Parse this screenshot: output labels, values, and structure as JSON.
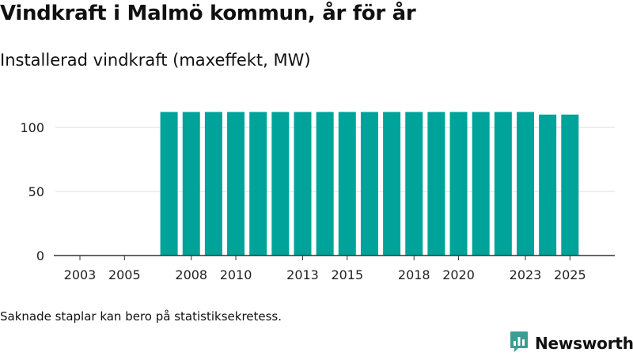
{
  "header": {
    "title": "Vindkraft i Malmö kommun, år för år",
    "subtitle": "Installerad vindkraft (maxeffekt, MW)"
  },
  "footer": {
    "note": "Saknade staplar kan bero på statistiksekretess.",
    "brand": "Newsworthy"
  },
  "colors": {
    "bar": "#00a39a",
    "brand": "#3a9e93",
    "grid": "#dddddd",
    "axis": "#333333"
  },
  "chart_data": {
    "type": "bar",
    "title": "Vindkraft i Malmö kommun, år för år",
    "subtitle": "Installerad vindkraft (maxeffekt, MW)",
    "xlabel": "",
    "ylabel": "",
    "ylim": [
      0,
      125
    ],
    "yticks": [
      0,
      50,
      100
    ],
    "grid": true,
    "categories": [
      "2003",
      "2004",
      "2005",
      "2006",
      "2007",
      "2008",
      "2009",
      "2010",
      "2011",
      "2012",
      "2013",
      "2014",
      "2015",
      "2016",
      "2017",
      "2018",
      "2019",
      "2020",
      "2021",
      "2022",
      "2023",
      "2024",
      "2025"
    ],
    "xtick_labels": [
      "2003",
      "2005",
      "2008",
      "2010",
      "2013",
      "2015",
      "2018",
      "2020",
      "2023",
      "2025"
    ],
    "values": [
      null,
      null,
      null,
      null,
      112,
      112,
      112,
      112,
      112,
      112,
      112,
      112,
      112,
      112,
      112,
      112,
      112,
      112,
      112,
      112,
      112,
      110,
      110
    ]
  }
}
